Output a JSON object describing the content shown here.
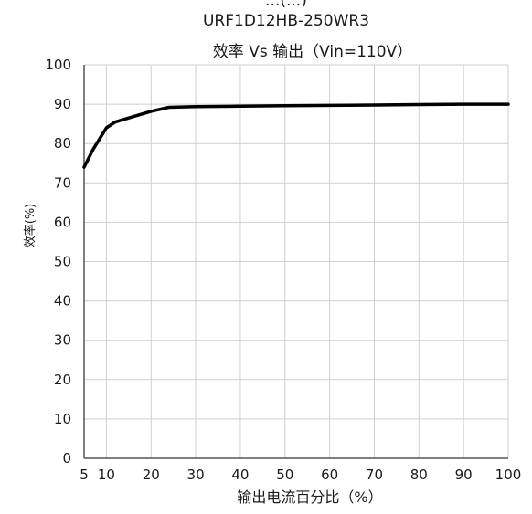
{
  "chart_data": {
    "type": "line",
    "title_partial": "...(...)",
    "title": "URF1D12HB-250WR3",
    "subtitle": "效率 Vs 输出（Vin=110V）",
    "xlabel": "输出电流百分比（%）",
    "ylabel": "效率(%)",
    "xlim": [
      5,
      100
    ],
    "ylim": [
      0,
      100
    ],
    "x_ticks": [
      5,
      10,
      20,
      30,
      40,
      50,
      60,
      70,
      80,
      90,
      100
    ],
    "y_ticks": [
      0,
      10,
      20,
      30,
      40,
      50,
      60,
      70,
      80,
      90,
      100
    ],
    "grid": true,
    "line_color": "#000000",
    "series": [
      {
        "x": [
          5,
          7,
          10,
          12,
          15,
          20,
          24,
          30,
          40,
          50,
          60,
          70,
          80,
          90,
          100
        ],
        "values": [
          74,
          78.5,
          84,
          85.5,
          86.5,
          88.2,
          89.2,
          89.4,
          89.5,
          89.6,
          89.7,
          89.8,
          89.9,
          90,
          90
        ]
      }
    ]
  }
}
